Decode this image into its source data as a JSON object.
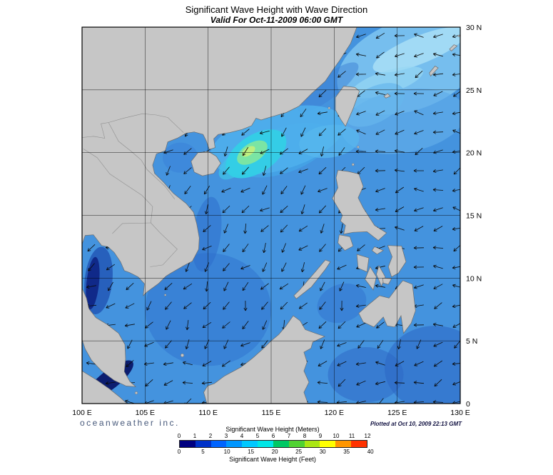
{
  "header": {
    "title": "Significant Wave Height with Wave Direction",
    "subtitle": "Valid For Oct-11-2009 06:00 GMT"
  },
  "footer": {
    "branding": "oceanweather inc.",
    "plotted_at": "Plotted at Oct 10, 2009 22:13 GMT"
  },
  "axes": {
    "lon_ticks": [
      "100 E",
      "105 E",
      "110 E",
      "115 E",
      "120 E",
      "125 E",
      "130 E"
    ],
    "lat_ticks": [
      "0",
      "5 N",
      "10 N",
      "15 N",
      "20 N",
      "25 N",
      "30 N"
    ],
    "lon_range": [
      100,
      130
    ],
    "lat_range": [
      0,
      30
    ],
    "grid_interval_deg": 5
  },
  "legend": {
    "meters_label": "Significant Wave Height (Meters)",
    "feet_label": "Significant Wave Height (Feet)",
    "meters_ticks": [
      0,
      1,
      2,
      3,
      4,
      5,
      6,
      7,
      8,
      9,
      10,
      11,
      12
    ],
    "feet_ticks": [
      0,
      5,
      10,
      15,
      20,
      25,
      30,
      35,
      40
    ],
    "colors": [
      "#000080",
      "#0032C8",
      "#0064FF",
      "#0096FF",
      "#00C8FF",
      "#00E6E6",
      "#00C864",
      "#50D232",
      "#AAE614",
      "#FFFF00",
      "#FF9600",
      "#FF3200"
    ]
  },
  "map": {
    "ocean_base": "#4493DE",
    "land_color": "#C6C6C6",
    "coast_color": "#6E6E6E",
    "border_color": "#909090",
    "grid_color": "#000000",
    "arrow_color": "#0A0A0A",
    "frame_color": "#000000"
  }
}
